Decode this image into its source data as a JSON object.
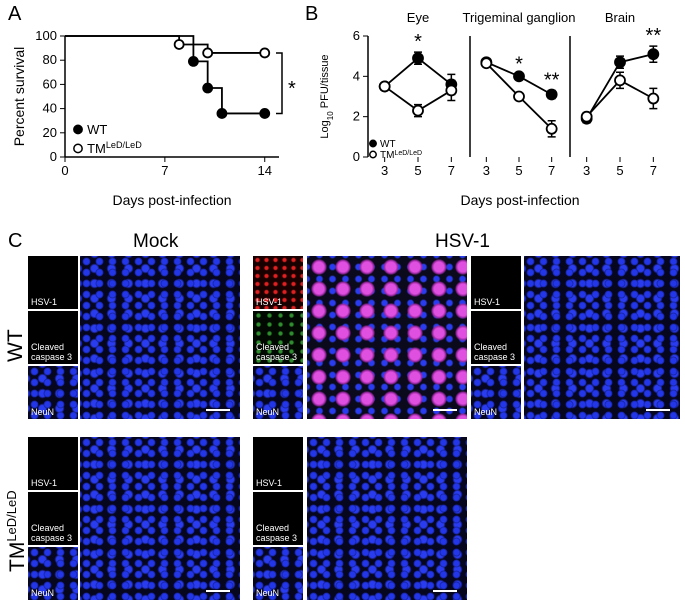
{
  "panel_labels": [
    "A",
    "B",
    "C"
  ],
  "chart_data": [
    {
      "type": "step",
      "x_label": "Days post-infection",
      "y_label": "Percent survival",
      "xlim": [
        0,
        15
      ],
      "xticks": [
        0,
        7,
        14
      ],
      "ylim": [
        0,
        100
      ],
      "yticks": [
        0,
        20,
        40,
        60,
        80,
        100
      ],
      "series": [
        {
          "name": "WT",
          "color": "#000000",
          "marker_fill": "#000000",
          "x": [
            0,
            9,
            10,
            11,
            14
          ],
          "values": [
            100,
            79,
            57,
            36,
            36
          ]
        },
        {
          "name": "TM",
          "name_sup": "LeD/LeD",
          "color": "#000000",
          "marker_fill": "#ffffff",
          "x": [
            0,
            8,
            10,
            14
          ],
          "values": [
            100,
            93,
            86,
            86
          ]
        }
      ],
      "annotations": [
        {
          "text": "*"
        }
      ]
    },
    {
      "type": "line",
      "title": "Eye",
      "x_label": "Days post-infection",
      "y_label": [
        "Log",
        "10",
        " PFU/tissue"
      ],
      "x": [
        3,
        5,
        7
      ],
      "xlim": [
        2,
        8
      ],
      "xticks": [
        3,
        5,
        7
      ],
      "ylim": [
        0,
        6
      ],
      "yticks": [
        0,
        2,
        4,
        6
      ],
      "series": [
        {
          "name": "WT",
          "color": "#000000",
          "marker_fill": "#000000",
          "values": [
            3.5,
            4.9,
            3.6
          ],
          "errors": [
            0.1,
            0.3,
            0.5
          ]
        },
        {
          "name": "TM",
          "name_sup": "LeD/LeD",
          "color": "#000000",
          "marker_fill": "#ffffff",
          "values": [
            3.5,
            2.3,
            3.3
          ],
          "errors": [
            0.1,
            0.3,
            0.5
          ]
        }
      ],
      "annotations": [
        {
          "x": 5,
          "text": "*"
        }
      ]
    },
    {
      "type": "line",
      "title": "Trigeminal ganglion",
      "x": [
        3,
        5,
        7
      ],
      "xlim": [
        2,
        8
      ],
      "xticks": [
        3,
        5,
        7
      ],
      "ylim": [
        0,
        6
      ],
      "series": [
        {
          "color": "#000000",
          "marker_fill": "#000000",
          "values": [
            4.7,
            4.0,
            3.1
          ],
          "errors": [
            0.1,
            0.1,
            0.2
          ]
        },
        {
          "color": "#000000",
          "marker_fill": "#ffffff",
          "values": [
            4.65,
            3.0,
            1.4
          ],
          "errors": [
            0.1,
            0.1,
            0.4
          ]
        }
      ],
      "annotations": [
        {
          "x": 5,
          "text": "*"
        },
        {
          "x": 7,
          "text": "**"
        }
      ]
    },
    {
      "type": "line",
      "title": "Brain",
      "x": [
        3,
        5,
        7
      ],
      "xlim": [
        2,
        8
      ],
      "xticks": [
        3,
        5,
        7
      ],
      "ylim": [
        0,
        6
      ],
      "series": [
        {
          "color": "#000000",
          "marker_fill": "#000000",
          "values": [
            1.9,
            4.7,
            5.1
          ],
          "errors": [
            0.2,
            0.3,
            0.4
          ]
        },
        {
          "color": "#000000",
          "marker_fill": "#ffffff",
          "values": [
            2.0,
            3.8,
            2.9
          ],
          "errors": [
            0.2,
            0.4,
            0.5
          ]
        }
      ],
      "annotations": [
        {
          "x": 7,
          "text": "**"
        }
      ]
    }
  ],
  "microscopy": {
    "columns": [
      "Mock",
      "HSV-1"
    ],
    "rows": [
      {
        "label": "WT"
      },
      {
        "label": "TM",
        "label_sup": "LeD/LeD"
      }
    ],
    "channels": [
      "HSV-1",
      "Cleaved caspase 3",
      "NeuN"
    ]
  }
}
